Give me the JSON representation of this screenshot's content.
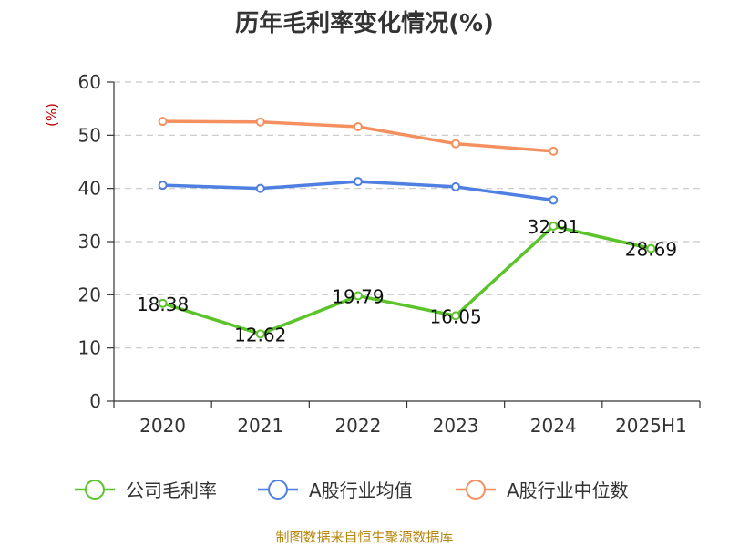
{
  "chart_data": {
    "type": "line",
    "title": "历年毛利率变化情况(%)",
    "ylabel": "(%)",
    "categories": [
      "2020",
      "2021",
      "2022",
      "2023",
      "2024",
      "2025H1"
    ],
    "ylim": [
      0,
      60
    ],
    "yticks": [
      "0",
      "10",
      "20",
      "30",
      "40",
      "50",
      "60"
    ],
    "grid": true,
    "legend_position": "bottom",
    "series": [
      {
        "name": "公司毛利率",
        "color": "#5cc42b",
        "values": [
          18.38,
          12.62,
          19.79,
          16.05,
          32.91,
          28.69
        ],
        "labels": [
          "18.38",
          "12.62",
          "19.79",
          "16.05",
          "32.91",
          "28.69"
        ]
      },
      {
        "name": "A股行业均值",
        "color": "#4f7fe0",
        "values": [
          40.6,
          40.0,
          41.3,
          40.3,
          37.8,
          null
        ]
      },
      {
        "name": "A股行业中位数",
        "color": "#f4905f",
        "values": [
          52.6,
          52.5,
          51.6,
          48.4,
          47.0,
          null
        ]
      }
    ],
    "source": "制图数据来自恒生聚源数据库"
  }
}
